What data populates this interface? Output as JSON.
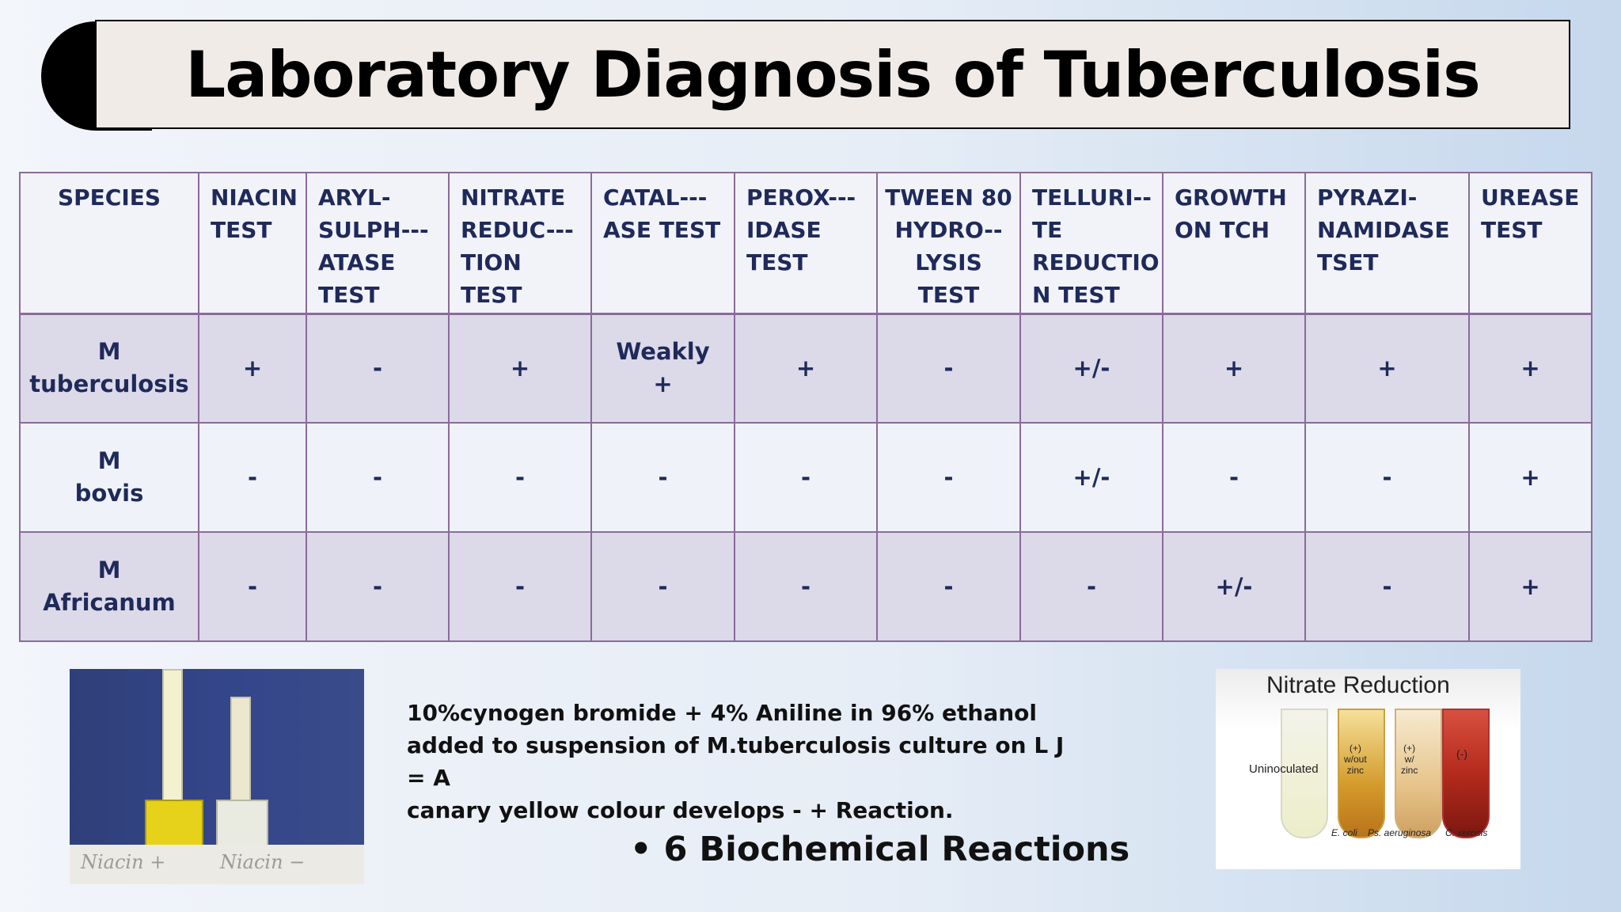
{
  "title": "Laboratory Diagnosis of Tuberculosis",
  "table": {
    "headers": [
      [
        "SPECIES"
      ],
      [
        "NIACIN",
        "TEST"
      ],
      [
        "ARYL-",
        "SULPH---",
        "ATASE",
        "TEST"
      ],
      [
        "NITRATE",
        "REDUC---",
        "TION TEST"
      ],
      [
        "CATAL---",
        "ASE TEST"
      ],
      [
        "PEROX---",
        "IDASE",
        "TEST"
      ],
      [
        "TWEEN 80",
        "HYDRO--",
        "LYSIS TEST"
      ],
      [
        "TELLURI--",
        "TE",
        "REDUCTIO",
        "N TEST"
      ],
      [
        "GROWTH",
        "ON TCH"
      ],
      [
        "PYRAZI-",
        "NAMIDASE",
        "TSET"
      ],
      [
        "UREASE",
        "TEST"
      ]
    ],
    "rows": [
      {
        "species": [
          "M",
          "tuberculosis"
        ],
        "cells": [
          "+",
          "-",
          "+",
          [
            "Weakly",
            "+"
          ],
          "+",
          "-",
          "+/-",
          "+",
          "+",
          "+"
        ]
      },
      {
        "species": [
          "M",
          "bovis"
        ],
        "cells": [
          "-",
          "-",
          "-",
          "-",
          "-",
          "-",
          "+/-",
          "-",
          "-",
          "+"
        ]
      },
      {
        "species": [
          "M",
          "Africanum"
        ],
        "cells": [
          "-",
          "-",
          "-",
          "-",
          "-",
          "-",
          "-",
          "+/-",
          "-",
          "+"
        ]
      }
    ]
  },
  "niacin_image": {
    "label_left": "Niacin +",
    "label_right": "Niacin −"
  },
  "description": [
    "10%cynogen bromide + 4% Aniline in 96% ethanol",
    "added to suspension of M.tuberculosis culture on L J = A",
    "canary yellow colour  develops - + Reaction."
  ],
  "bullet": "• 6 Biochemical Reactions",
  "nitrate_image": {
    "title": "Nitrate Reduction",
    "uninoculated": "Uninoculated",
    "tube2": [
      "(+)",
      "w/out",
      "zinc"
    ],
    "tube3": [
      "(+)",
      "w/",
      "zinc"
    ],
    "tube4": "(-)",
    "captions": [
      "E. coli",
      "Ps. aeruginosa",
      "C. xerosis"
    ]
  }
}
